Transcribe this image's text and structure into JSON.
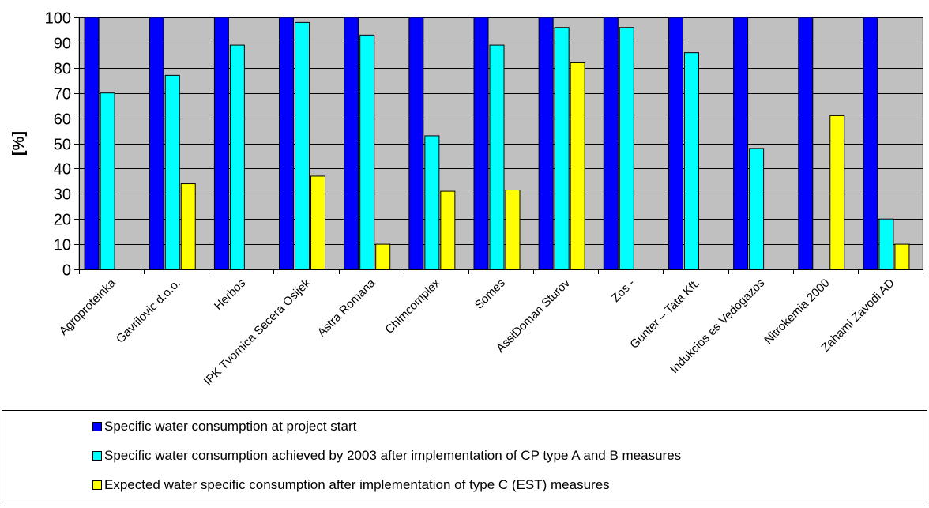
{
  "chart_data": {
    "type": "bar",
    "title": "",
    "xlabel": "",
    "ylabel": "[%]",
    "ylim": [
      0,
      100
    ],
    "yticks": [
      0,
      10,
      20,
      30,
      40,
      50,
      60,
      70,
      80,
      90,
      100
    ],
    "grid": true,
    "legend_position": "bottom",
    "categories": [
      "Agroproteinka",
      "Gavrilovic d.o.o.",
      "Herbos",
      "IPK Tvornica Secera Osijek",
      "Astra Romana",
      "Chimcomplex",
      "Somes",
      "AssiDoman Sturov",
      "Zos -",
      "Gunter – Tata Kft.",
      "Indukcios es Vedogazos",
      "Nitrokemia 2000",
      "Zahami Zavodi AD"
    ],
    "series": [
      {
        "name": "Specific water  consumption at project start",
        "color": "#0000ff",
        "values": [
          100,
          100,
          100,
          100,
          100,
          100,
          100,
          100,
          100,
          100,
          100,
          100,
          100
        ]
      },
      {
        "name": "Specific water  consumption achieved by 2003 after implementation of CP type A and B measures",
        "color": "#00ffff",
        "values": [
          70,
          77,
          89,
          98,
          93,
          53,
          89,
          96,
          96,
          86,
          48,
          null,
          20
        ]
      },
      {
        "name": "Expected water specific consumption after implementation of type C (EST) measures",
        "color": "#ffff00",
        "values": [
          null,
          34,
          null,
          37,
          10,
          31,
          31.5,
          82,
          null,
          null,
          null,
          61,
          10
        ]
      }
    ],
    "colors": {
      "plot_background": "#c0c0c0",
      "gridline": "#000000"
    }
  }
}
